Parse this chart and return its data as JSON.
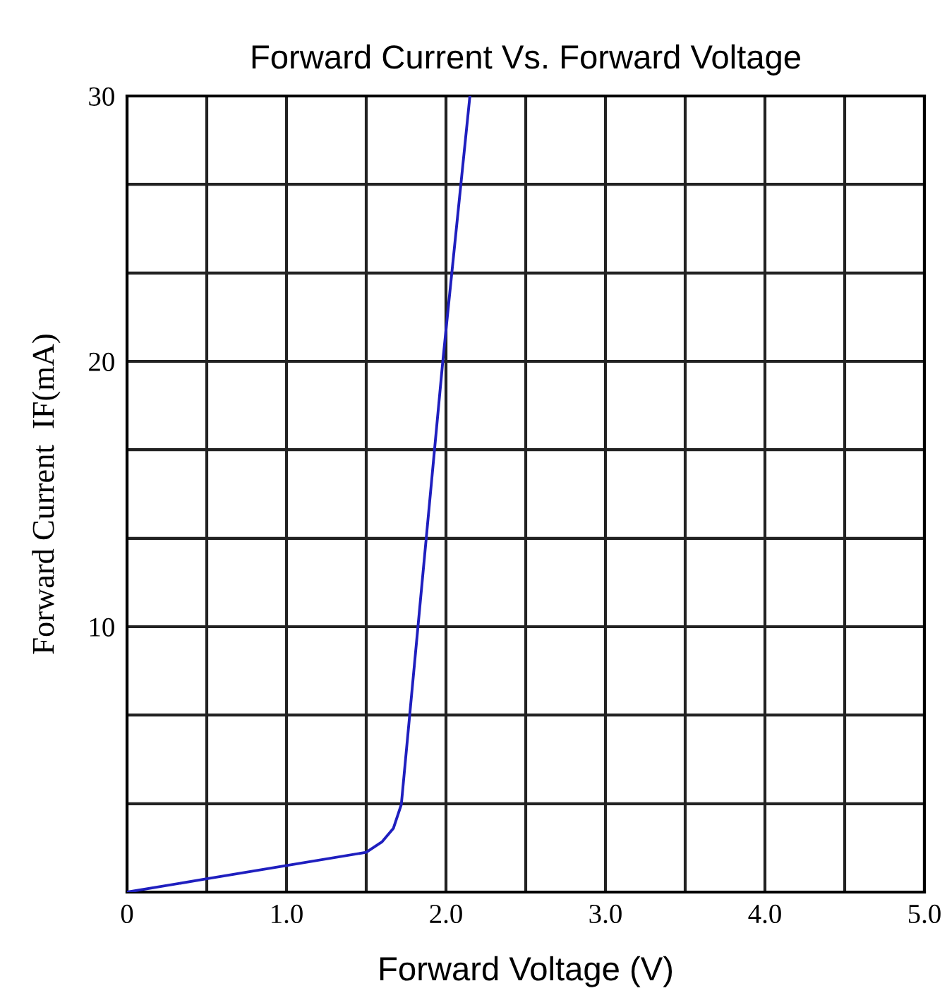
{
  "chart_data": {
    "type": "line",
    "title": "Forward Current Vs. Forward Voltage",
    "xlabel": "Forward Voltage (V)",
    "ylabel": "Forward Current  IF(mA)",
    "x": [
      0,
      0.5,
      1.0,
      1.5,
      1.6,
      1.67,
      1.72,
      1.98,
      2.15
    ],
    "series": [
      {
        "color": "#1f1fbf",
        "values": [
          0,
          0.5,
          1.0,
          1.5,
          1.9,
          2.4,
          3.3,
          20,
          30
        ]
      }
    ],
    "xlim": [
      0,
      5
    ],
    "ylim": [
      0,
      30
    ],
    "xticks": [
      0,
      {
        "value": 0.5,
        "label": null
      },
      {
        "value": 1,
        "label": "1.0"
      },
      {
        "value": 1.5,
        "label": null
      },
      {
        "value": 2,
        "label": "2.0"
      },
      {
        "value": 2.5,
        "label": null
      },
      {
        "value": 3,
        "label": "3.0"
      },
      {
        "value": 3.5,
        "label": null
      },
      {
        "value": 4,
        "label": "4.0"
      },
      {
        "value": 4.5,
        "label": null
      },
      {
        "value": 5,
        "label": "5.0"
      }
    ],
    "yticks": [
      {
        "value": 3.33,
        "label": null
      },
      {
        "value": 6.67,
        "label": null
      },
      10,
      {
        "value": 13.33,
        "label": null
      },
      {
        "value": 16.67,
        "label": null
      },
      20,
      {
        "value": 23.33,
        "label": null
      },
      {
        "value": 26.67,
        "label": null
      },
      30
    ],
    "grid": true,
    "marker": "none",
    "line_style": "solid"
  }
}
